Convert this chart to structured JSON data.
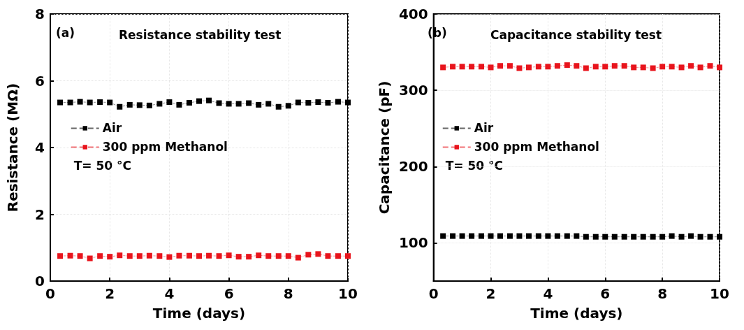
{
  "chart_data": [
    {
      "type": "line",
      "title": "Resistance stability test",
      "xlabel": "Time (days)",
      "ylabel": "Resistance (MΩ)",
      "annotations": [
        "(a)",
        "T= 50 °C"
      ],
      "x": [
        0.33,
        0.67,
        1,
        1.33,
        1.67,
        2,
        2.33,
        2.67,
        3,
        3.33,
        3.67,
        4,
        4.33,
        4.67,
        5,
        5.33,
        5.67,
        6,
        6.33,
        6.67,
        7,
        7.33,
        7.67,
        8,
        8.33,
        8.67,
        9,
        9.33,
        9.67,
        10
      ],
      "series": [
        {
          "name": "Air",
          "color": "#000000",
          "values": [
            5.35,
            5.35,
            5.37,
            5.35,
            5.36,
            5.35,
            5.22,
            5.28,
            5.27,
            5.26,
            5.31,
            5.36,
            5.28,
            5.34,
            5.39,
            5.41,
            5.33,
            5.31,
            5.31,
            5.33,
            5.28,
            5.31,
            5.22,
            5.25,
            5.35,
            5.34,
            5.36,
            5.34,
            5.37,
            5.35
          ]
        },
        {
          "name": "300 ppm Methanol",
          "color": "#e8141c",
          "values": [
            0.75,
            0.76,
            0.75,
            0.68,
            0.75,
            0.73,
            0.77,
            0.75,
            0.75,
            0.76,
            0.75,
            0.72,
            0.76,
            0.76,
            0.75,
            0.76,
            0.75,
            0.77,
            0.73,
            0.73,
            0.77,
            0.75,
            0.75,
            0.75,
            0.7,
            0.79,
            0.81,
            0.75,
            0.75,
            0.75
          ]
        }
      ],
      "xlim": [
        0,
        10
      ],
      "xticks": [
        0,
        2,
        4,
        6,
        8,
        10
      ],
      "ylim": [
        0,
        8
      ],
      "yticks": [
        0,
        2,
        4,
        6,
        8
      ],
      "grid": true,
      "legend": "left",
      "marker": "square",
      "line_style": "dashed"
    },
    {
      "type": "line",
      "title": "Capacitance stability test",
      "xlabel": "Time (days)",
      "ylabel": "Capacitance (pF)",
      "annotations": [
        "(b)",
        "T= 50 °C"
      ],
      "x": [
        0.33,
        0.67,
        1,
        1.33,
        1.67,
        2,
        2.33,
        2.67,
        3,
        3.33,
        3.67,
        4,
        4.33,
        4.67,
        5,
        5.33,
        5.67,
        6,
        6.33,
        6.67,
        7,
        7.33,
        7.67,
        8,
        8.33,
        8.67,
        9,
        9.33,
        9.67,
        10
      ],
      "series": [
        {
          "name": "Air",
          "color": "#000000",
          "values": [
            109,
            109,
            109,
            109,
            109,
            109,
            109,
            109,
            109,
            109,
            109,
            109,
            109,
            109,
            109,
            108,
            108,
            108,
            108,
            108,
            108,
            108,
            108,
            108,
            109,
            108,
            109,
            108,
            108,
            108
          ]
        },
        {
          "name": "300 ppm Methanol",
          "color": "#e8141c",
          "values": [
            330,
            331,
            331,
            331,
            331,
            330,
            332,
            332,
            329,
            330,
            331,
            331,
            332,
            333,
            332,
            329,
            331,
            331,
            332,
            332,
            330,
            330,
            329,
            331,
            331,
            330,
            332,
            330,
            332,
            330
          ]
        }
      ],
      "xlim": [
        0,
        10
      ],
      "xticks": [
        0,
        2,
        4,
        6,
        8,
        10
      ],
      "ylim": [
        50,
        400
      ],
      "yticks": [
        100,
        200,
        300,
        400
      ],
      "grid": true,
      "legend": "left",
      "marker": "square",
      "line_style": "dashed"
    }
  ]
}
